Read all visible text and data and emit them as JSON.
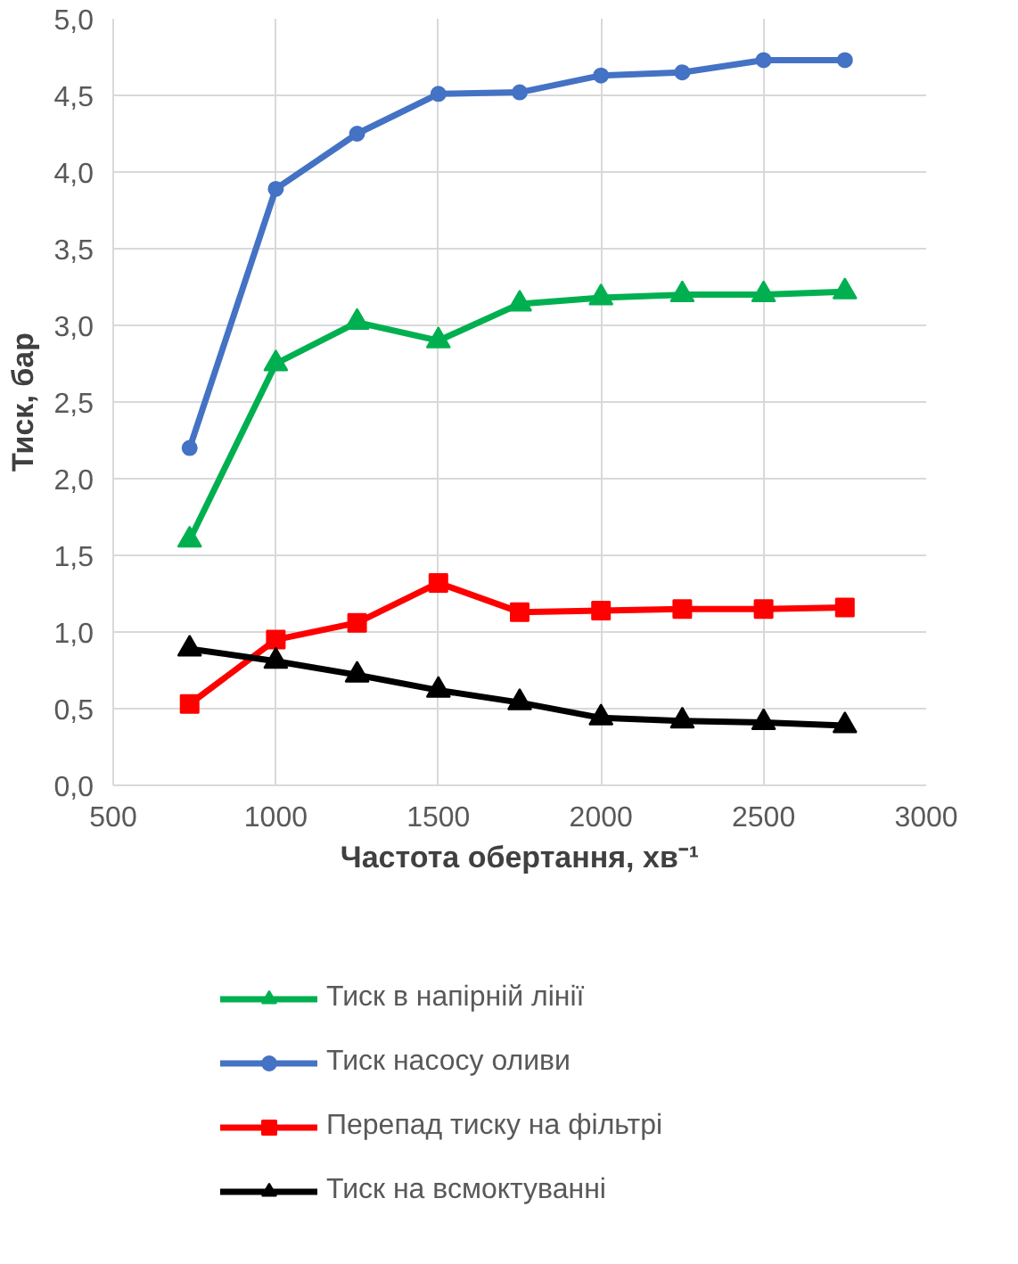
{
  "chart_data": {
    "type": "line",
    "xlabel": "Частота обертання, хв⁻¹",
    "ylabel": "Тиск, бар",
    "x": [
      735,
      1000,
      1250,
      1500,
      1750,
      2000,
      2250,
      2500,
      2750
    ],
    "series": [
      {
        "name": "Тиск в напірній лінії",
        "color": "#00b050",
        "marker": "triangle",
        "values": [
          1.6,
          2.75,
          3.02,
          2.9,
          3.14,
          3.18,
          3.2,
          3.2,
          3.22
        ]
      },
      {
        "name": "Тиск насосу оливи",
        "color": "#4472c4",
        "marker": "circle",
        "values": [
          2.2,
          3.89,
          4.25,
          4.51,
          4.52,
          4.63,
          4.65,
          4.73,
          4.73
        ]
      },
      {
        "name": "Перепад тиску на фільтрі",
        "color": "#ff0000",
        "marker": "square",
        "values": [
          0.53,
          0.95,
          1.06,
          1.32,
          1.13,
          1.14,
          1.15,
          1.15,
          1.16
        ]
      },
      {
        "name": "Тиск на всмоктуванні",
        "color": "#000000",
        "marker": "triangle",
        "values": [
          0.89,
          0.81,
          0.72,
          0.62,
          0.54,
          0.44,
          0.42,
          0.41,
          0.39
        ]
      }
    ],
    "xlim": [
      500,
      3000
    ],
    "xticks": [
      500,
      1000,
      1500,
      2000,
      2500,
      3000
    ],
    "ylim": [
      0,
      5
    ],
    "yticks": [
      {
        "value": 0,
        "label": "0,0"
      },
      {
        "value": 0.5,
        "label": "0,5"
      },
      {
        "value": 1,
        "label": "1,0"
      },
      {
        "value": 1.5,
        "label": "1,5"
      },
      {
        "value": 2,
        "label": "2,0"
      },
      {
        "value": 2.5,
        "label": "2,5"
      },
      {
        "value": 3,
        "label": "3,0"
      },
      {
        "value": 3.5,
        "label": "3,5"
      },
      {
        "value": 4,
        "label": "4,0"
      },
      {
        "value": 4.5,
        "label": "4,5"
      },
      {
        "value": 5,
        "label": "5,0"
      }
    ],
    "grid": true,
    "legend": "bottom",
    "line_style": "solid"
  }
}
